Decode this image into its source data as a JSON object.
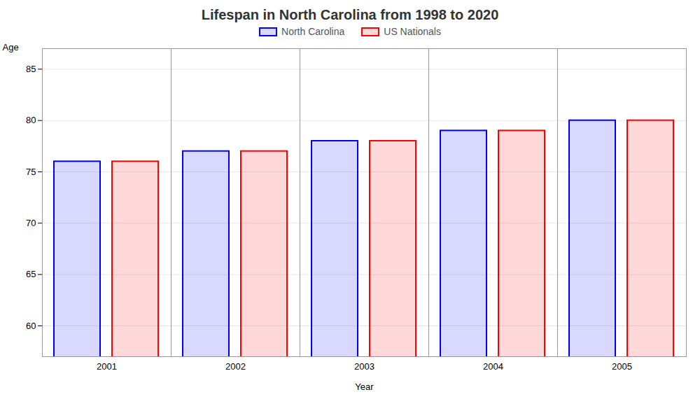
{
  "chart_data": {
    "type": "bar",
    "title": "Lifespan in North Carolina from 1998 to 2020",
    "xlabel": "Year",
    "ylabel": "Age",
    "categories": [
      "2001",
      "2002",
      "2003",
      "2004",
      "2005"
    ],
    "series": [
      {
        "name": "North Carolina",
        "color": "#0000ff",
        "values": [
          76,
          77,
          78,
          79,
          80
        ]
      },
      {
        "name": "US Nationals",
        "color": "#ff0000",
        "values": [
          76,
          77,
          78,
          79,
          80
        ]
      }
    ],
    "ylim": [
      57,
      87
    ],
    "yticks": [
      60,
      65,
      70,
      75,
      80,
      85
    ],
    "grid": true,
    "legend": "top"
  }
}
